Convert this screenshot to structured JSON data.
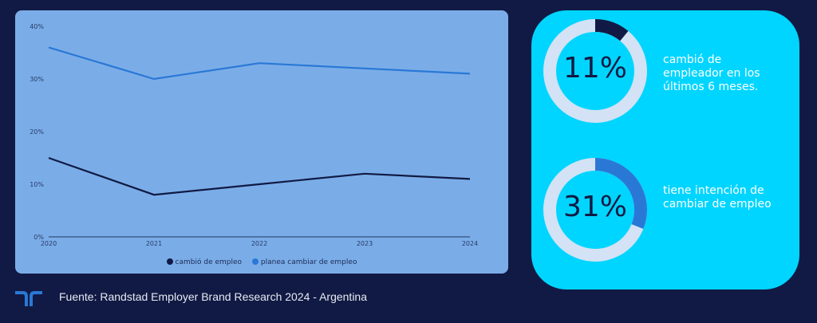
{
  "chart_data": {
    "type": "line",
    "title": "",
    "xlabel": "",
    "ylabel": "",
    "categories": [
      "2020",
      "2021",
      "2022",
      "2023",
      "2024"
    ],
    "ylim": [
      0,
      40
    ],
    "yticks": [
      "0%",
      "10%",
      "20%",
      "30%",
      "40%"
    ],
    "ytick_values": [
      0,
      10,
      20,
      30,
      40
    ],
    "grid": false,
    "legend_position": "bottom-center",
    "series": [
      {
        "name": "cambió de empleo",
        "values": [
          15,
          8,
          10,
          12,
          11
        ],
        "color": "#111a44"
      },
      {
        "name": "planea cambiar de empleo",
        "values": [
          36,
          30,
          33,
          32,
          31
        ],
        "color": "#2a78d6"
      }
    ]
  },
  "stats": [
    {
      "value": "11%",
      "fraction": 0.11,
      "ring_color": "#111a44",
      "track_color": "#d3e2f5",
      "description_lines": [
        "cambió de",
        "empleador en los",
        "últimos 6 meses."
      ]
    },
    {
      "value": "31%",
      "fraction": 0.31,
      "ring_color": "#2a78d6",
      "track_color": "#d3e2f5",
      "description_lines": [
        "tiene intención de",
        "cambiar de empleo"
      ]
    }
  ],
  "footer": {
    "logo_icon": "randstad-logo-icon",
    "source": "Fuente: Randstad Employer Brand Research 2024 - Argentina"
  }
}
